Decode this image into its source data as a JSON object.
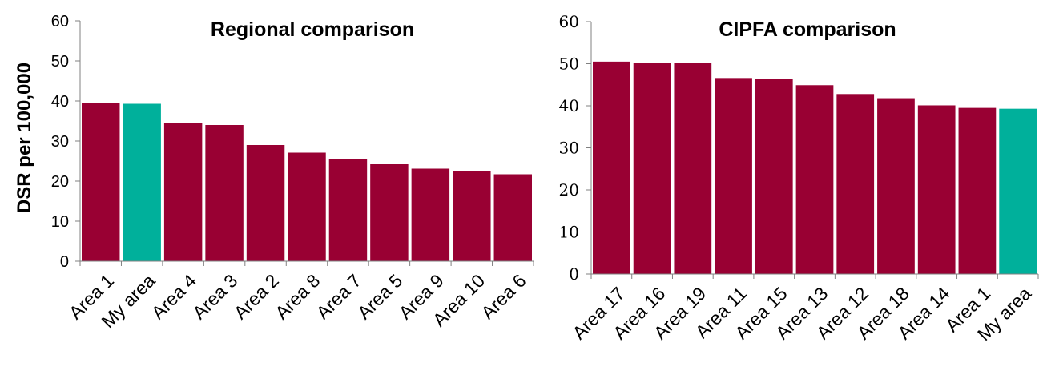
{
  "colors": {
    "default_bar": "#990033",
    "highlight_bar": "#00B09B",
    "axis": "#808080"
  },
  "chart_data": [
    {
      "type": "bar",
      "title": "Regional comparison",
      "xlabel": "",
      "ylabel": "DSR per 100,000",
      "ylim": [
        0,
        60
      ],
      "yticks": [
        0,
        10,
        20,
        30,
        40,
        50,
        60
      ],
      "grid": false,
      "highlight": "My area",
      "categories": [
        "Area 1",
        "My area",
        "Area 4",
        "Area 3",
        "Area 2",
        "Area 8",
        "Area 7",
        "Area 5",
        "Area 9",
        "Area 10",
        "Area 6"
      ],
      "values": [
        39.5,
        39.3,
        34.6,
        34.0,
        29.0,
        27.1,
        25.5,
        24.2,
        23.1,
        22.6,
        21.7
      ]
    },
    {
      "type": "bar",
      "title": "CIPFA comparison",
      "xlabel": "",
      "ylabel": "",
      "ylim": [
        0,
        60
      ],
      "yticks": [
        0,
        10,
        20,
        30,
        40,
        50,
        60
      ],
      "grid": false,
      "highlight": "My area",
      "categories": [
        "Area 17",
        "Area 16",
        "Area 19",
        "Area 11",
        "Area 15",
        "Area 13",
        "Area 12",
        "Area 18",
        "Area 14",
        "Area 1",
        "My area"
      ],
      "values": [
        50.5,
        50.2,
        50.1,
        46.6,
        46.4,
        44.9,
        42.8,
        41.8,
        40.1,
        39.5,
        39.3
      ]
    }
  ]
}
